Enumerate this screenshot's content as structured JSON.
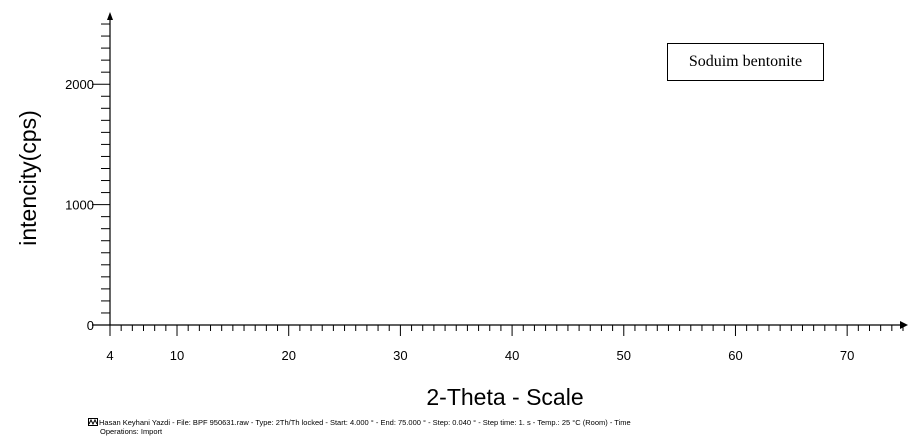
{
  "chart_data": {
    "type": "line",
    "title": "",
    "xlabel": "2-Theta - Scale",
    "ylabel": "intencity(cps)",
    "xlim": [
      4,
      75
    ],
    "ylim": [
      0,
      2550
    ],
    "x_ticks": [
      4,
      10,
      20,
      30,
      40,
      50,
      60,
      70
    ],
    "y_ticks": [
      0,
      1000,
      2000
    ],
    "series": [
      {
        "name": "Soduim bentonite",
        "x": [],
        "y": []
      }
    ],
    "legend": {
      "label": "Soduim bentonite",
      "position": "top-right"
    },
    "grid": false
  },
  "footer": {
    "line1": "Hasan Keyhani Yazdi - File: BPF 950631.raw - Type: 2Th/Th locked - Start: 4.000 ° - End: 75.000 ° - Step: 0.040 ° - Step time: 1. s - Temp.: 25 °C (Room) - Time",
    "line2": "Operations: Import",
    "icon": "diffractogram-icon"
  }
}
